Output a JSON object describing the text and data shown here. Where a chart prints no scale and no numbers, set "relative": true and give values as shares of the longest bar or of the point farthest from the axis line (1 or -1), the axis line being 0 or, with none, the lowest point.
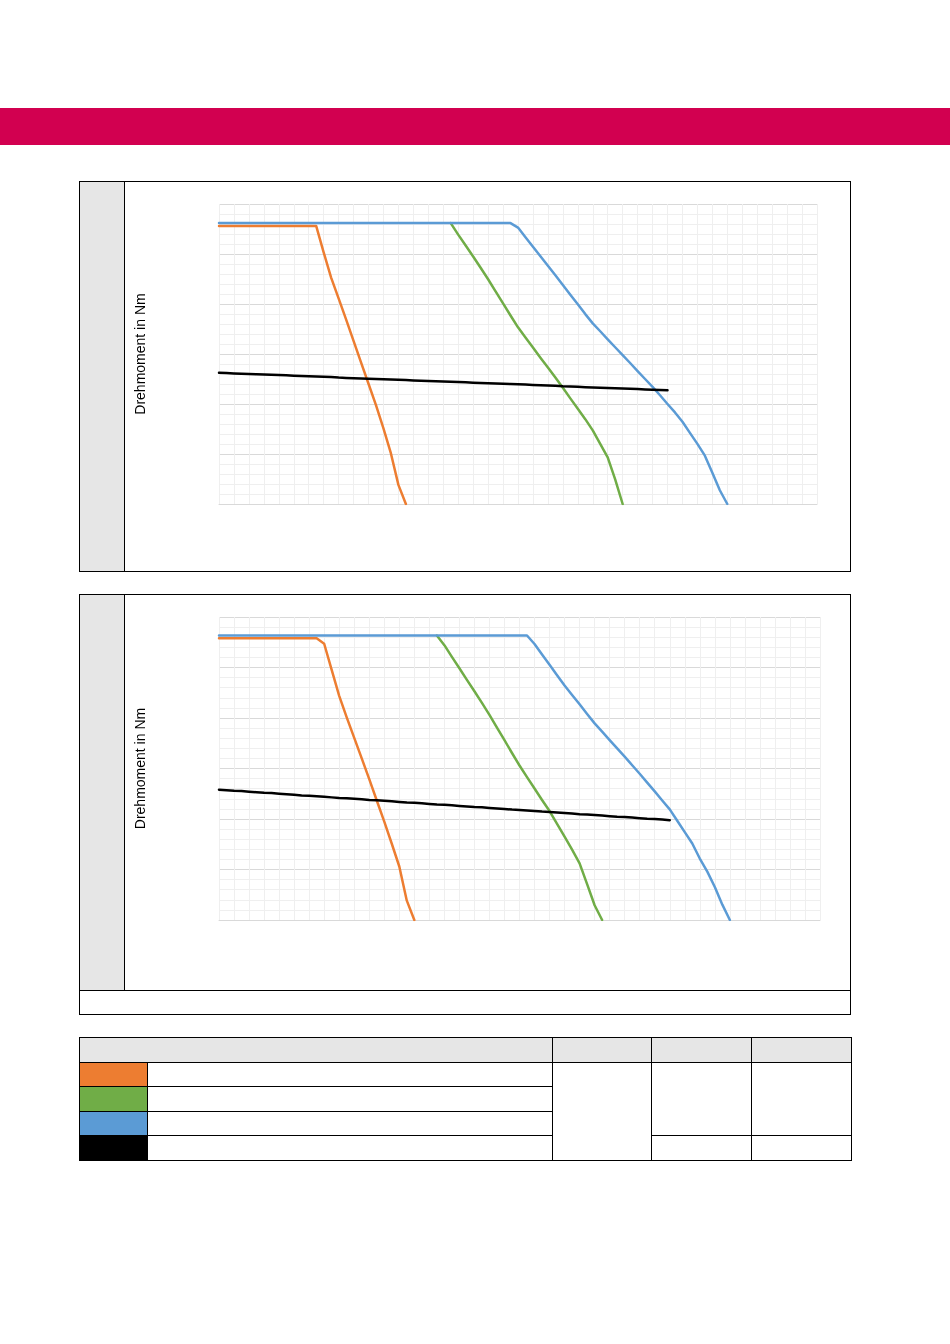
{
  "chart_data": [
    {
      "type": "line",
      "ylabel": "Drehmoment in Nm",
      "relative": true,
      "grid": true,
      "marker": "none",
      "line_style": "solid",
      "categories": [
        null,
        null,
        null,
        null,
        null,
        null,
        null,
        null,
        null,
        null,
        null,
        null,
        null,
        null,
        null,
        null,
        null,
        null,
        null,
        null,
        null,
        null,
        null,
        null,
        null,
        null,
        null,
        null,
        null,
        null,
        null,
        null,
        null,
        null,
        null,
        null,
        null,
        null,
        null,
        null,
        null,
        null,
        null,
        null,
        null,
        null,
        null,
        null,
        null,
        null,
        null,
        null,
        null,
        null,
        null,
        null,
        null,
        null,
        null,
        null,
        null,
        null,
        null,
        null,
        null,
        null,
        null,
        null,
        null,
        null,
        null,
        null,
        null,
        null,
        null,
        null,
        null,
        null,
        null,
        null,
        null
      ],
      "series": [
        {
          "color": "#ed7d31",
          "values": [
            0.99,
            0.99,
            0.99,
            0.99,
            0.99,
            0.99,
            0.99,
            0.99,
            0.99,
            0.99,
            0.99,
            0.99,
            0.99,
            0.99,
            0.896,
            0.806,
            0.732,
            0.657,
            0.581,
            0.504,
            0.428,
            0.352,
            0.269,
            0.18,
            0.068,
            0,
            null,
            null,
            null,
            null,
            null,
            null,
            null,
            null,
            null,
            null,
            null,
            null,
            null,
            null,
            null,
            null,
            null,
            null,
            null,
            null,
            null,
            null,
            null,
            null,
            null,
            null,
            null,
            null,
            null,
            null,
            null,
            null,
            null,
            null,
            null,
            null,
            null,
            null,
            null,
            null,
            null,
            null,
            null,
            null,
            null,
            null,
            null,
            null,
            null,
            null,
            null,
            null,
            null,
            null,
            null
          ]
        },
        {
          "color": "#70ad47",
          "values": [
            null,
            null,
            null,
            null,
            null,
            null,
            null,
            null,
            null,
            null,
            null,
            null,
            null,
            null,
            null,
            null,
            null,
            null,
            null,
            null,
            null,
            null,
            null,
            null,
            null,
            null,
            null,
            null,
            null,
            null,
            null,
            1,
            0.959,
            0.92,
            0.881,
            0.841,
            0.8,
            0.757,
            0.714,
            0.671,
            0.629,
            0.593,
            0.557,
            0.521,
            0.486,
            0.45,
            0.414,
            0.376,
            0.339,
            0.302,
            0.262,
            0.214,
            0.166,
            0.088,
            0,
            null,
            null,
            null,
            null,
            null,
            null,
            null,
            null,
            null,
            null,
            null,
            null,
            null,
            null,
            null,
            null,
            null,
            null,
            null,
            null,
            null,
            null,
            null,
            null,
            null,
            null
          ]
        },
        {
          "color": "#5b9bd5",
          "values": [
            1,
            1,
            1,
            1,
            1,
            1,
            1,
            1,
            1,
            1,
            1,
            1,
            1,
            1,
            1,
            1,
            1,
            1,
            1,
            1,
            1,
            1,
            1,
            1,
            1,
            1,
            1,
            1,
            1,
            1,
            1,
            1,
            1,
            1,
            1,
            1,
            1,
            1,
            1,
            1,
            0.984,
            0.95,
            0.916,
            0.882,
            0.848,
            0.814,
            0.78,
            0.745,
            0.711,
            0.676,
            0.643,
            0.615,
            0.586,
            0.558,
            0.53,
            0.502,
            0.473,
            0.445,
            0.417,
            0.387,
            0.356,
            0.326,
            0.293,
            0.253,
            0.214,
            0.172,
            0.111,
            0.049,
            0,
            null,
            null,
            null,
            null,
            null,
            null,
            null,
            null,
            null,
            null,
            null,
            null
          ]
        },
        {
          "color": "#000000",
          "values": [
            0.467,
            0.466,
            0.465,
            0.464,
            0.463,
            0.462,
            0.461,
            0.46,
            0.459,
            0.458,
            0.457,
            0.456,
            0.455,
            0.454,
            0.453,
            0.452,
            0.45,
            0.449,
            0.448,
            0.447,
            0.446,
            0.445,
            0.444,
            0.443,
            0.442,
            0.441,
            0.44,
            0.439,
            0.438,
            0.437,
            0.436,
            0.435,
            0.434,
            0.433,
            0.432,
            0.431,
            0.43,
            0.429,
            0.428,
            0.427,
            0.426,
            0.425,
            0.424,
            0.423,
            0.422,
            0.421,
            0.419,
            0.418,
            0.417,
            0.416,
            0.415,
            0.414,
            0.413,
            0.412,
            0.411,
            0.41,
            0.409,
            0.408,
            0.407,
            0.406,
            0.405,
            null,
            null,
            null,
            null,
            null,
            null,
            null,
            null,
            null,
            null,
            null,
            null,
            null,
            null,
            null,
            null,
            null,
            null,
            null,
            null
          ]
        }
      ]
    },
    {
      "type": "line",
      "ylabel": "Drehmoment in Nm",
      "relative": true,
      "grid": true,
      "marker": "none",
      "line_style": "solid",
      "categories": [
        null,
        null,
        null,
        null,
        null,
        null,
        null,
        null,
        null,
        null,
        null,
        null,
        null,
        null,
        null,
        null,
        null,
        null,
        null,
        null,
        null,
        null,
        null,
        null,
        null,
        null,
        null,
        null,
        null,
        null,
        null,
        null,
        null,
        null,
        null,
        null,
        null,
        null,
        null,
        null,
        null,
        null,
        null,
        null,
        null,
        null,
        null,
        null,
        null,
        null,
        null,
        null,
        null,
        null,
        null,
        null,
        null,
        null,
        null,
        null,
        null,
        null,
        null,
        null,
        null,
        null,
        null,
        null,
        null,
        null,
        null,
        null,
        null,
        null,
        null,
        null,
        null,
        null,
        null,
        null,
        null
      ],
      "series": [
        {
          "color": "#ed7d31",
          "values": [
            0.99,
            0.99,
            0.99,
            0.99,
            0.99,
            0.99,
            0.99,
            0.99,
            0.99,
            0.99,
            0.99,
            0.99,
            0.99,
            0.99,
            0.971,
            0.879,
            0.788,
            0.712,
            0.64,
            0.568,
            0.495,
            0.42,
            0.346,
            0.268,
            0.188,
            0.068,
            0,
            null,
            null,
            null,
            null,
            null,
            null,
            null,
            null,
            null,
            null,
            null,
            null,
            null,
            null,
            null,
            null,
            null,
            null,
            null,
            null,
            null,
            null,
            null,
            null,
            null,
            null,
            null,
            null,
            null,
            null,
            null,
            null,
            null,
            null,
            null,
            null,
            null,
            null,
            null,
            null,
            null,
            null,
            null,
            null,
            null,
            null,
            null,
            null,
            null,
            null,
            null,
            null,
            null,
            null
          ]
        },
        {
          "color": "#70ad47",
          "values": [
            null,
            null,
            null,
            null,
            null,
            null,
            null,
            null,
            null,
            null,
            null,
            null,
            null,
            null,
            null,
            null,
            null,
            null,
            null,
            null,
            null,
            null,
            null,
            null,
            null,
            null,
            null,
            null,
            null,
            1,
            0.966,
            0.925,
            0.885,
            0.844,
            0.804,
            0.763,
            0.721,
            0.676,
            0.632,
            0.587,
            0.543,
            0.502,
            0.462,
            0.422,
            0.383,
            0.338,
            0.293,
            0.247,
            0.199,
            0.126,
            0.052,
            0,
            null,
            null,
            null,
            null,
            null,
            null,
            null,
            null,
            null,
            null,
            null,
            null,
            null,
            null,
            null,
            null,
            null,
            null,
            null,
            null,
            null,
            null,
            null,
            null,
            null,
            null,
            null,
            null,
            null
          ]
        },
        {
          "color": "#5b9bd5",
          "values": [
            1,
            1,
            1,
            1,
            1,
            1,
            1,
            1,
            1,
            1,
            1,
            1,
            1,
            1,
            1,
            1,
            1,
            1,
            1,
            1,
            1,
            1,
            1,
            1,
            1,
            1,
            1,
            1,
            1,
            1,
            1,
            1,
            1,
            1,
            1,
            1,
            1,
            1,
            1,
            1,
            1,
            1,
            0.97,
            0.933,
            0.897,
            0.86,
            0.824,
            0.791,
            0.758,
            0.724,
            0.691,
            0.662,
            0.632,
            0.603,
            0.574,
            0.544,
            0.514,
            0.483,
            0.452,
            0.42,
            0.389,
            0.349,
            0.309,
            0.269,
            0.216,
            0.17,
            0.116,
            0.054,
            0,
            null,
            null,
            null,
            null,
            null,
            null,
            null,
            null,
            null,
            null,
            null,
            null
          ]
        },
        {
          "color": "#000000",
          "values": [
            0.458,
            0.456,
            0.454,
            0.453,
            0.451,
            0.449,
            0.447,
            0.446,
            0.444,
            0.442,
            0.44,
            0.438,
            0.437,
            0.435,
            0.433,
            0.431,
            0.429,
            0.428,
            0.426,
            0.424,
            0.422,
            0.421,
            0.419,
            0.417,
            0.415,
            0.413,
            0.412,
            0.41,
            0.408,
            0.406,
            0.405,
            0.403,
            0.401,
            0.399,
            0.397,
            0.396,
            0.394,
            0.392,
            0.39,
            0.388,
            0.387,
            0.385,
            0.383,
            0.381,
            0.38,
            0.378,
            0.376,
            0.374,
            0.372,
            0.371,
            0.369,
            0.367,
            0.365,
            0.363,
            0.362,
            0.36,
            0.358,
            0.356,
            0.355,
            0.353,
            0.351,
            null,
            null,
            null,
            null,
            null,
            null,
            null,
            null,
            null,
            null,
            null,
            null,
            null,
            null,
            null,
            null,
            null,
            null,
            null,
            null
          ]
        }
      ]
    }
  ]
}
